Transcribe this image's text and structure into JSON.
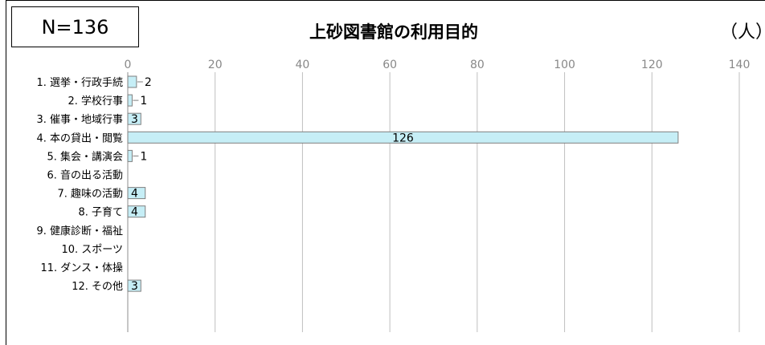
{
  "n_label": "N=136",
  "chart_data": {
    "type": "bar",
    "orientation": "horizontal",
    "title": "上砂図書館の利用目的",
    "unit": "（人）",
    "categories": [
      "1. 選挙・行政手続",
      "2. 学校行事",
      "3. 催事・地域行事",
      "4. 本の貸出・閲覧",
      "5. 集会・講演会",
      "6. 音の出る活動",
      "7. 趣味の活動",
      "8. 子育て",
      "9. 健康診断・福祉",
      "10. スポーツ",
      "11. ダンス・体操",
      "12. その他"
    ],
    "values": [
      2,
      1,
      3,
      126,
      1,
      0,
      4,
      4,
      0,
      0,
      0,
      3
    ],
    "xlim": [
      0,
      140
    ],
    "xticks": [
      0,
      20,
      40,
      60,
      80,
      100,
      120,
      140
    ],
    "grid": true,
    "bar_color": "#c6eef6",
    "bar_border": "#7f7f7f"
  }
}
